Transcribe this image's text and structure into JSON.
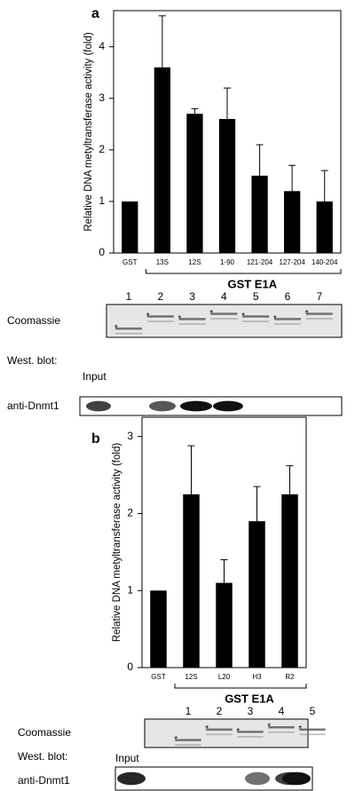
{
  "chart_data": [
    {
      "type": "bar",
      "panel_label": "a",
      "y_label": "Relative DNA metyltransferase activity (fold)",
      "categories": [
        "GST",
        "13S",
        "12S",
        "1-90",
        "121-204",
        "127-204",
        "140-204"
      ],
      "values": [
        1.0,
        3.6,
        2.7,
        2.6,
        1.5,
        1.2,
        1.0
      ],
      "errors": [
        null,
        1.0,
        0.1,
        0.6,
        0.6,
        0.5,
        0.6
      ],
      "color": "#000000",
      "ylim": [
        0,
        4.7
      ],
      "yticks": [
        0,
        1,
        2,
        3,
        4
      ],
      "group_label": "GST E1A",
      "lane_numbers": [
        "1",
        "2",
        "3",
        "4",
        "5",
        "6",
        "7"
      ],
      "stain_label": "Coomassie",
      "blot_label": "West. blot:",
      "input_label": "Input",
      "antibody_label": "anti-Dnmt1",
      "marker": "*"
    },
    {
      "type": "bar",
      "panel_label": "b",
      "y_label": "Relative DNA metyltransferase activity (fold)",
      "categories": [
        "GST",
        "12S",
        "L20",
        "H3",
        "R2"
      ],
      "values": [
        1.0,
        2.25,
        1.1,
        1.9,
        2.25
      ],
      "errors": [
        null,
        0.63,
        0.3,
        0.45,
        0.37
      ],
      "color": "#000000",
      "ylim": [
        0,
        3.25
      ],
      "yticks": [
        0,
        1,
        2,
        3
      ],
      "group_label": "GST E1A",
      "lane_numbers": [
        "1",
        "2",
        "3",
        "4",
        "5"
      ],
      "stain_label": "Coomassie",
      "blot_label": "West. blot:",
      "input_label": "Input",
      "antibody_label": "anti-Dnmt1",
      "marker": "*"
    }
  ]
}
